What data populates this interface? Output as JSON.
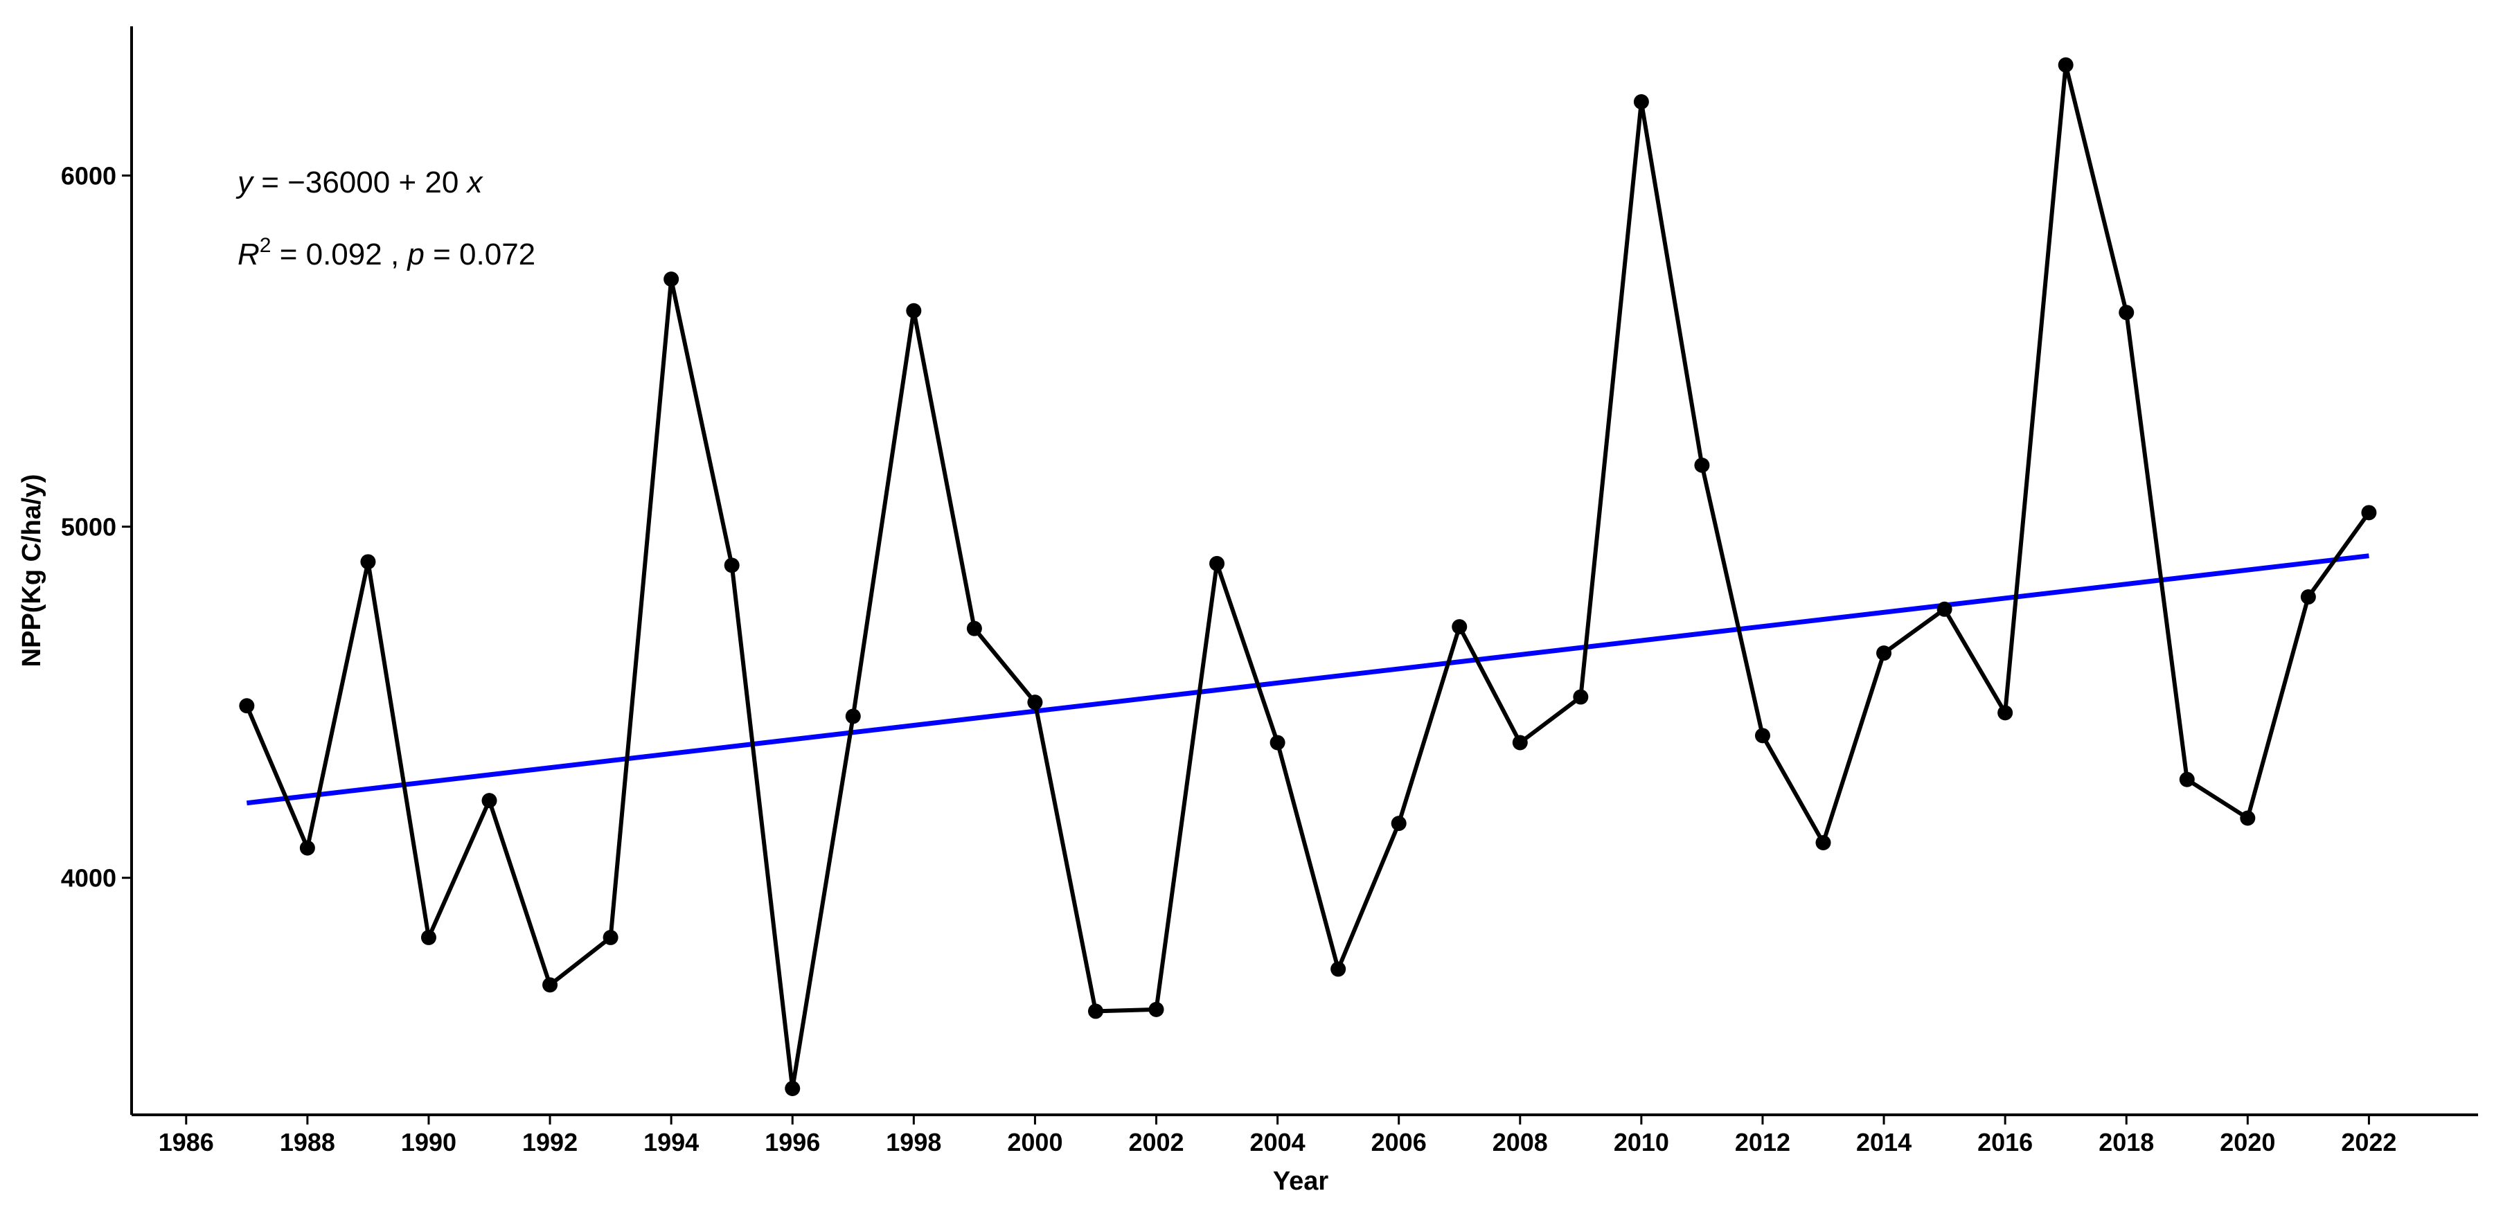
{
  "chart_data": {
    "type": "line",
    "xlabel": "Year",
    "ylabel": "NPP(Kg C/ha/y)",
    "xlim": [
      1985.1,
      2023.8
    ],
    "ylim": [
      3325,
      6425
    ],
    "xticks": [
      1986,
      1988,
      1990,
      1992,
      1994,
      1996,
      1998,
      2000,
      2002,
      2004,
      2006,
      2008,
      2010,
      2012,
      2014,
      2016,
      2018,
      2020,
      2022
    ],
    "xtick_labels": [
      "1986",
      "1988",
      "1990",
      "1992",
      "1994",
      "1996",
      "1998",
      "2000",
      "2002",
      "2004",
      "2006",
      "2008",
      "2010",
      "2012",
      "2014",
      "2016",
      "2018",
      "2020",
      "2022"
    ],
    "yticks": [
      4000,
      5000,
      6000
    ],
    "ytick_labels": [
      "4000",
      "5000",
      "6000"
    ],
    "grid": false,
    "series": [
      {
        "color": "#000000",
        "x": [
          1987,
          1988,
          1989,
          1990,
          1991,
          1992,
          1993,
          1994,
          1995,
          1996,
          1997,
          1998,
          1999,
          2000,
          2001,
          2002,
          2003,
          2004,
          2005,
          2006,
          2007,
          2008,
          2009,
          2010,
          2011,
          2012,
          2013,
          2014,
          2015,
          2016,
          2017,
          2018,
          2019,
          2020,
          2021,
          2022
        ],
        "y": [
          4490,
          4085,
          4900,
          3830,
          4220,
          3695,
          3830,
          5705,
          4890,
          3400,
          4460,
          5615,
          4710,
          4500,
          3620,
          3625,
          4895,
          4385,
          3740,
          4155,
          4715,
          4385,
          4515,
          6210,
          5175,
          4405,
          4100,
          4640,
          4765,
          4470,
          6315,
          5610,
          4280,
          4170,
          4800,
          5040
        ]
      },
      {
        "type": "trend",
        "color": "#0000ff",
        "x": [
          1987,
          2022
        ],
        "y": [
          4213,
          4917
        ]
      }
    ],
    "annotations": {
      "eq_y": "y",
      "eq_eq": " = ",
      "eq_minus": "−",
      "eq_rest": "36000 + 20 ",
      "eq_x": "x",
      "r_R": "R",
      "r_sup": "2",
      "r_mid": " = 0.092 , ",
      "r_p": "p",
      "r_end": " = 0.072"
    }
  }
}
